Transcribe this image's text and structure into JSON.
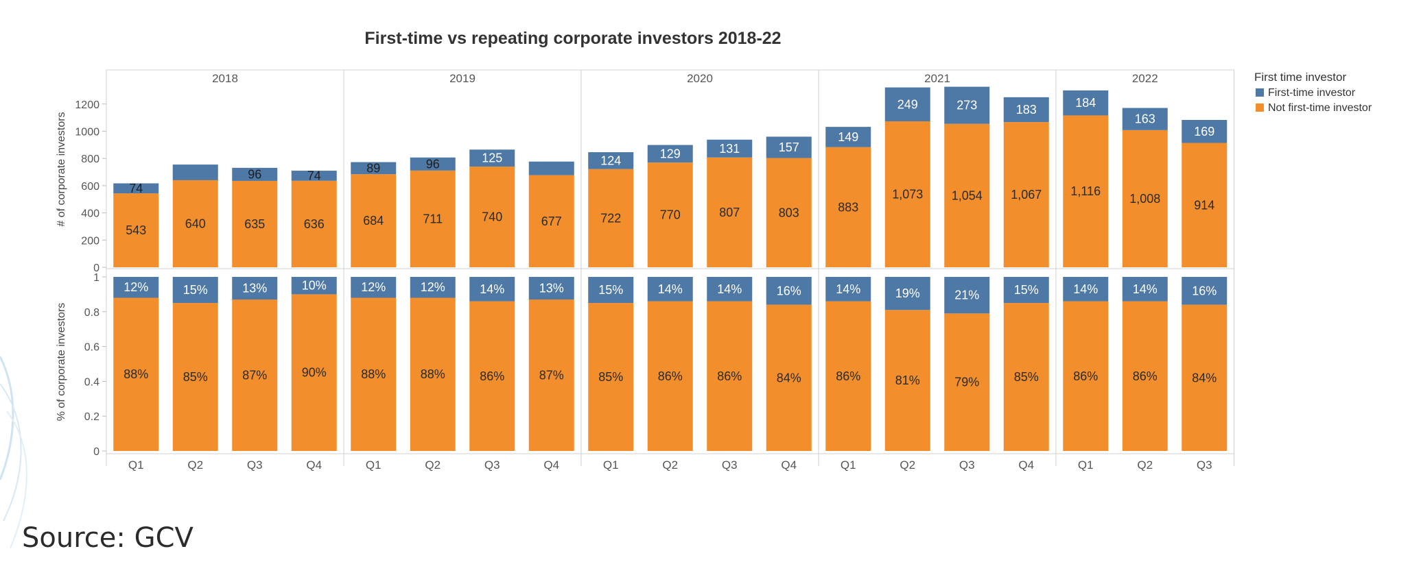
{
  "chart_data": {
    "type": "bar",
    "title": "First-time vs repeating corporate investors 2018-22",
    "years": [
      "2018",
      "2019",
      "2020",
      "2021",
      "2022"
    ],
    "categories": [
      {
        "year": "2018",
        "quarter": "Q1"
      },
      {
        "year": "2018",
        "quarter": "Q2"
      },
      {
        "year": "2018",
        "quarter": "Q3"
      },
      {
        "year": "2018",
        "quarter": "Q4"
      },
      {
        "year": "2019",
        "quarter": "Q1"
      },
      {
        "year": "2019",
        "quarter": "Q2"
      },
      {
        "year": "2019",
        "quarter": "Q3"
      },
      {
        "year": "2019",
        "quarter": "Q4"
      },
      {
        "year": "2020",
        "quarter": "Q1"
      },
      {
        "year": "2020",
        "quarter": "Q2"
      },
      {
        "year": "2020",
        "quarter": "Q3"
      },
      {
        "year": "2020",
        "quarter": "Q4"
      },
      {
        "year": "2021",
        "quarter": "Q1"
      },
      {
        "year": "2021",
        "quarter": "Q2"
      },
      {
        "year": "2021",
        "quarter": "Q3"
      },
      {
        "year": "2021",
        "quarter": "Q4"
      },
      {
        "year": "2022",
        "quarter": "Q1"
      },
      {
        "year": "2022",
        "quarter": "Q2"
      },
      {
        "year": "2022",
        "quarter": "Q3"
      }
    ],
    "legend": {
      "title": "First time investor",
      "position": "top-right",
      "entries": [
        {
          "name": "First-time investor",
          "color": "#4e79a7"
        },
        {
          "name": "Not first-time investor",
          "color": "#f28e2b"
        }
      ]
    },
    "panels": [
      {
        "ylabel": "# of corporate investors",
        "ylim": [
          0,
          1360
        ],
        "yticks": [
          0,
          200,
          400,
          600,
          800,
          1000,
          1200
        ],
        "stacked": true,
        "series": [
          {
            "name": "Not first-time investor",
            "values": [
              543,
              640,
              635,
              636,
              684,
              711,
              740,
              677,
              722,
              770,
              807,
              803,
              883,
              1073,
              1054,
              1067,
              1116,
              1008,
              914
            ],
            "labels": [
              "543",
              "640",
              "635",
              "636",
              "684",
              "711",
              "740",
              "677",
              "722",
              "770",
              "807",
              "803",
              "883",
              "1,073",
              "1,054",
              "1,067",
              "1,116",
              "1,008",
              "914"
            ]
          },
          {
            "name": "First-time investor",
            "values": [
              74,
              115,
              96,
              74,
              89,
              96,
              125,
              100,
              124,
              129,
              131,
              157,
              149,
              249,
              273,
              183,
              184,
              163,
              169
            ],
            "labels": [
              "74",
              "",
              "96",
              "74",
              "89",
              "96",
              "125",
              "",
              "124",
              "129",
              "131",
              "157",
              "149",
              "249",
              "273",
              "183",
              "184",
              "163",
              "169"
            ]
          }
        ]
      },
      {
        "ylabel": "% of corporate investors",
        "ylim": [
          0,
          1
        ],
        "yticks": [
          0,
          0.2,
          0.4,
          0.6,
          0.8,
          1
        ],
        "stacked": true,
        "series": [
          {
            "name": "Not first-time investor",
            "values": [
              0.88,
              0.85,
              0.87,
              0.9,
              0.88,
              0.88,
              0.86,
              0.87,
              0.85,
              0.86,
              0.86,
              0.84,
              0.86,
              0.81,
              0.79,
              0.85,
              0.86,
              0.86,
              0.84
            ],
            "labels": [
              "88%",
              "85%",
              "87%",
              "90%",
              "88%",
              "88%",
              "86%",
              "87%",
              "85%",
              "86%",
              "86%",
              "84%",
              "86%",
              "81%",
              "79%",
              "85%",
              "86%",
              "86%",
              "84%"
            ]
          },
          {
            "name": "First-time investor",
            "values": [
              0.12,
              0.15,
              0.13,
              0.1,
              0.12,
              0.12,
              0.14,
              0.13,
              0.15,
              0.14,
              0.14,
              0.16,
              0.14,
              0.19,
              0.21,
              0.15,
              0.14,
              0.14,
              0.16
            ],
            "labels": [
              "12%",
              "15%",
              "13%",
              "10%",
              "12%",
              "12%",
              "14%",
              "13%",
              "15%",
              "14%",
              "14%",
              "16%",
              "14%",
              "19%",
              "21%",
              "15%",
              "14%",
              "14%",
              "16%"
            ]
          }
        ]
      }
    ]
  },
  "source": "Source: GCV"
}
